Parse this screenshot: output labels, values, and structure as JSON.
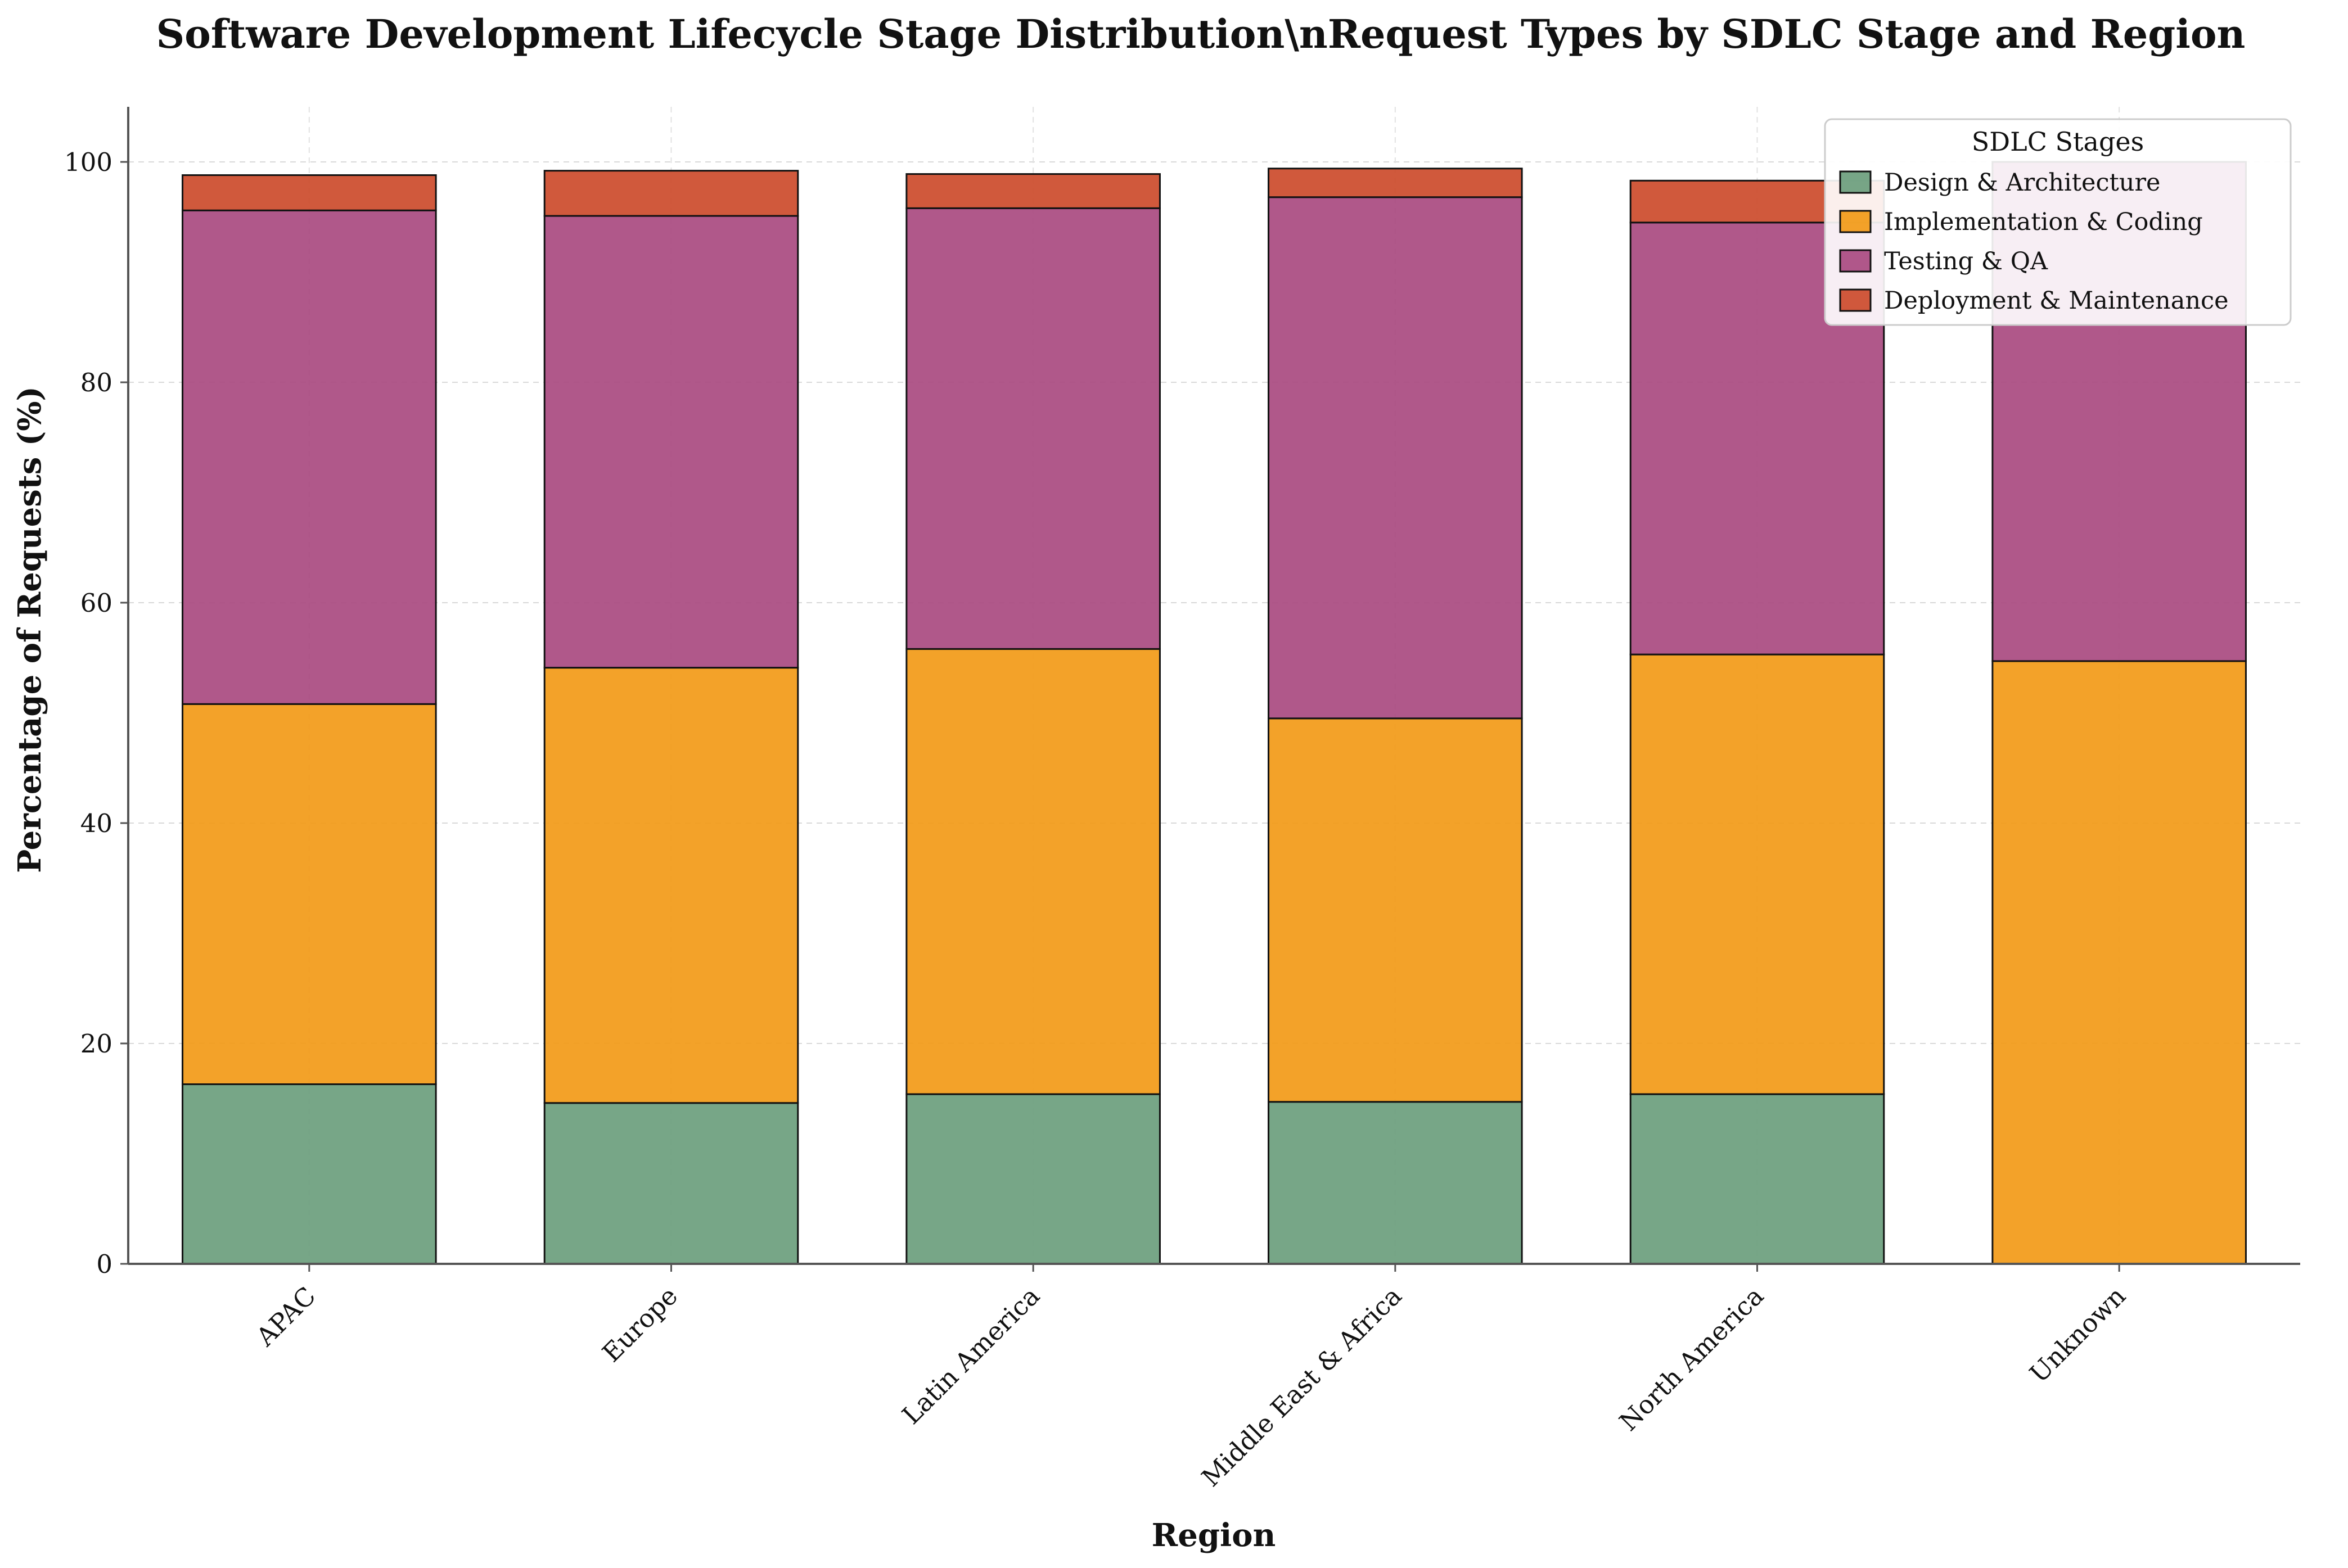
{
  "chart_data": {
    "type": "bar",
    "stacked": true,
    "title": "Software Development Lifecycle Stage Distribution\\nRequest Types by SDLC Stage and Region",
    "xlabel": "Region",
    "ylabel": "Percentage of Requests (%)",
    "ylim": [
      0,
      105
    ],
    "yticks": [
      0,
      20,
      40,
      60,
      80,
      100
    ],
    "grid": true,
    "legend_title": "SDLC Stages",
    "legend_position": "top-right",
    "categories": [
      "APAC",
      "Europe",
      "Latin America",
      "Middle East & Africa",
      "North America",
      "Unknown"
    ],
    "series": [
      {
        "name": "Design & Architecture",
        "color": "#6b9e7d",
        "values": [
          16.3,
          14.6,
          15.4,
          14.7,
          15.4,
          0
        ]
      },
      {
        "name": "Implementation & Coding",
        "color": "#f29a17",
        "values": [
          34.5,
          39.5,
          40.4,
          34.8,
          39.9,
          54.7
        ]
      },
      {
        "name": "Testing & QA",
        "color": "#a94a80",
        "values": [
          44.8,
          41.0,
          40.0,
          47.3,
          39.2,
          45.3
        ]
      },
      {
        "name": "Deployment & Maintenance",
        "color": "#cc4b2b",
        "values": [
          3.2,
          4.1,
          3.1,
          2.6,
          3.8,
          0
        ]
      }
    ]
  }
}
